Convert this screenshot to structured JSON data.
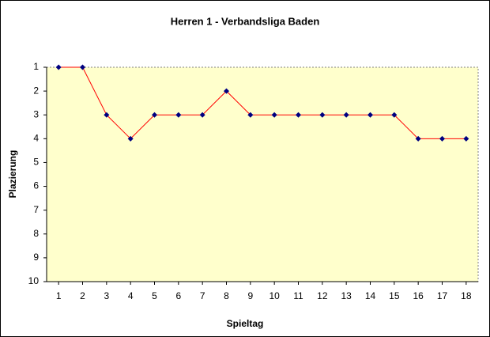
{
  "chart_data": {
    "type": "line",
    "title": "Herren 1 - Verbandsliga Baden",
    "x_label": "Spieltag",
    "y_label": "Plazierung",
    "x": [
      1,
      2,
      3,
      4,
      5,
      6,
      7,
      8,
      9,
      10,
      11,
      12,
      13,
      14,
      15,
      16,
      17,
      18
    ],
    "series": [
      {
        "name": "Plazierung",
        "color": "#ff0000",
        "marker_color": "#000080",
        "values": [
          1,
          1,
          3,
          4,
          3,
          3,
          3,
          2,
          3,
          3,
          3,
          3,
          3,
          3,
          3,
          4,
          4,
          4
        ]
      }
    ],
    "xlim": [
      0.5,
      18.5
    ],
    "xticks": [
      1,
      2,
      3,
      4,
      5,
      6,
      7,
      8,
      9,
      10,
      11,
      12,
      13,
      14,
      15,
      16,
      17,
      18
    ],
    "ylim": [
      1,
      10
    ],
    "yticks": [
      1,
      2,
      3,
      4,
      5,
      6,
      7,
      8,
      9,
      10
    ],
    "y_inverted": true,
    "plot_background": "#ffffcc",
    "legend": false
  }
}
